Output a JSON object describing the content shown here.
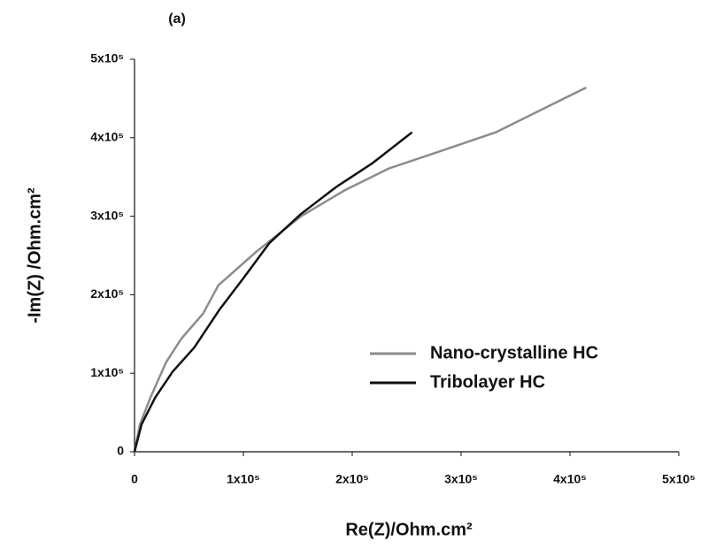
{
  "chart_data": {
    "type": "line",
    "panel_label": "(a)",
    "xlabel": "Re(Z)/Ohm.cm²",
    "ylabel": "-Im(Z) /Ohm.cm²",
    "xlim": [
      0,
      500000
    ],
    "ylim": [
      0,
      500000
    ],
    "xticks": [
      0,
      {
        "value": 100000,
        "label": "1x10⁵"
      },
      {
        "value": 200000,
        "label": "2x10⁵"
      },
      {
        "value": 300000,
        "label": "3x10⁵"
      },
      {
        "value": 400000,
        "label": "4x10⁵"
      },
      {
        "value": 500000,
        "label": "5x10⁵"
      }
    ],
    "yticks": [
      0,
      {
        "value": 100000,
        "label": "1x10⁵"
      },
      {
        "value": 200000,
        "label": "2x10⁵"
      },
      {
        "value": 300000,
        "label": "3x10⁵"
      },
      {
        "value": 400000,
        "label": "4x10⁵"
      },
      {
        "value": 500000,
        "label": "5x10⁵"
      }
    ],
    "grid": false,
    "legend": "right",
    "series": [
      {
        "name": "Nano-crystalline HC",
        "color": "#8c8c8c",
        "x": [
          0,
          5000,
          14600,
          29000,
          43000,
          63000,
          77000,
          112000,
          153000,
          193000,
          234000,
          279000,
          332000,
          415000
        ],
        "values": [
          0,
          35000,
          69000,
          114000,
          144000,
          176000,
          212000,
          255000,
          300000,
          333000,
          361000,
          382000,
          407000,
          464000
        ]
      },
      {
        "name": "Tribolayer HC",
        "color": "#111111",
        "x": [
          0,
          6500,
          19000,
          35000,
          55000,
          78000,
          100000,
          124000,
          153000,
          185000,
          218000,
          255000
        ],
        "values": [
          0,
          35000,
          69000,
          102000,
          133000,
          181000,
          221000,
          266000,
          303000,
          337000,
          367000,
          407000
        ]
      }
    ]
  }
}
